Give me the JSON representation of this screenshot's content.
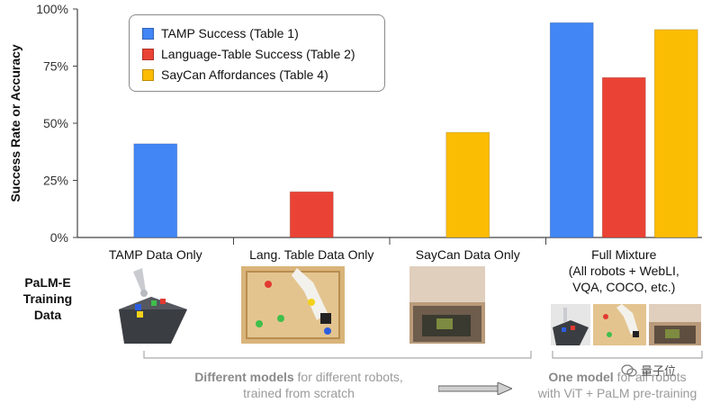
{
  "chart_data": {
    "type": "bar",
    "ylabel": "Success Rate or Accuracy",
    "ylim": [
      0,
      100
    ],
    "yticks": [
      {
        "value": 0,
        "label": "0%"
      },
      {
        "value": 25,
        "label": "25%"
      },
      {
        "value": 50,
        "label": "50%"
      },
      {
        "value": 75,
        "label": "75%"
      },
      {
        "value": 100,
        "label": "100%"
      }
    ],
    "categories": [
      "TAMP Data Only",
      "Lang. Table Data Only",
      "SayCan Data Only",
      "Full Mixture"
    ],
    "category_sublabel": "(All robots + WebLI, VQA, COCO, etc.)",
    "series": [
      {
        "name": "TAMP Success (Table 1)",
        "color": "#4285f4",
        "values": [
          41,
          null,
          null,
          94
        ]
      },
      {
        "name": "Language-Table Success (Table 2)",
        "color": "#ea4335",
        "values": [
          null,
          20,
          null,
          70
        ]
      },
      {
        "name": "SayCan Affordances (Table 4)",
        "color": "#fbbc04",
        "values": [
          null,
          null,
          46,
          91
        ]
      }
    ],
    "legend_position": "top-left",
    "grid": false
  },
  "training": {
    "label_line1": "PaLM-E",
    "label_line2": "Training",
    "label_line3": "Data"
  },
  "bottom": {
    "left_bold": "Different models",
    "left_rest": " for different robots,",
    "left_line2": "trained from scratch",
    "right_bold": "One model",
    "right_rest": " for all robots",
    "right_line2": "with ViT + PaLM pre-training"
  },
  "watermark": "量子位"
}
